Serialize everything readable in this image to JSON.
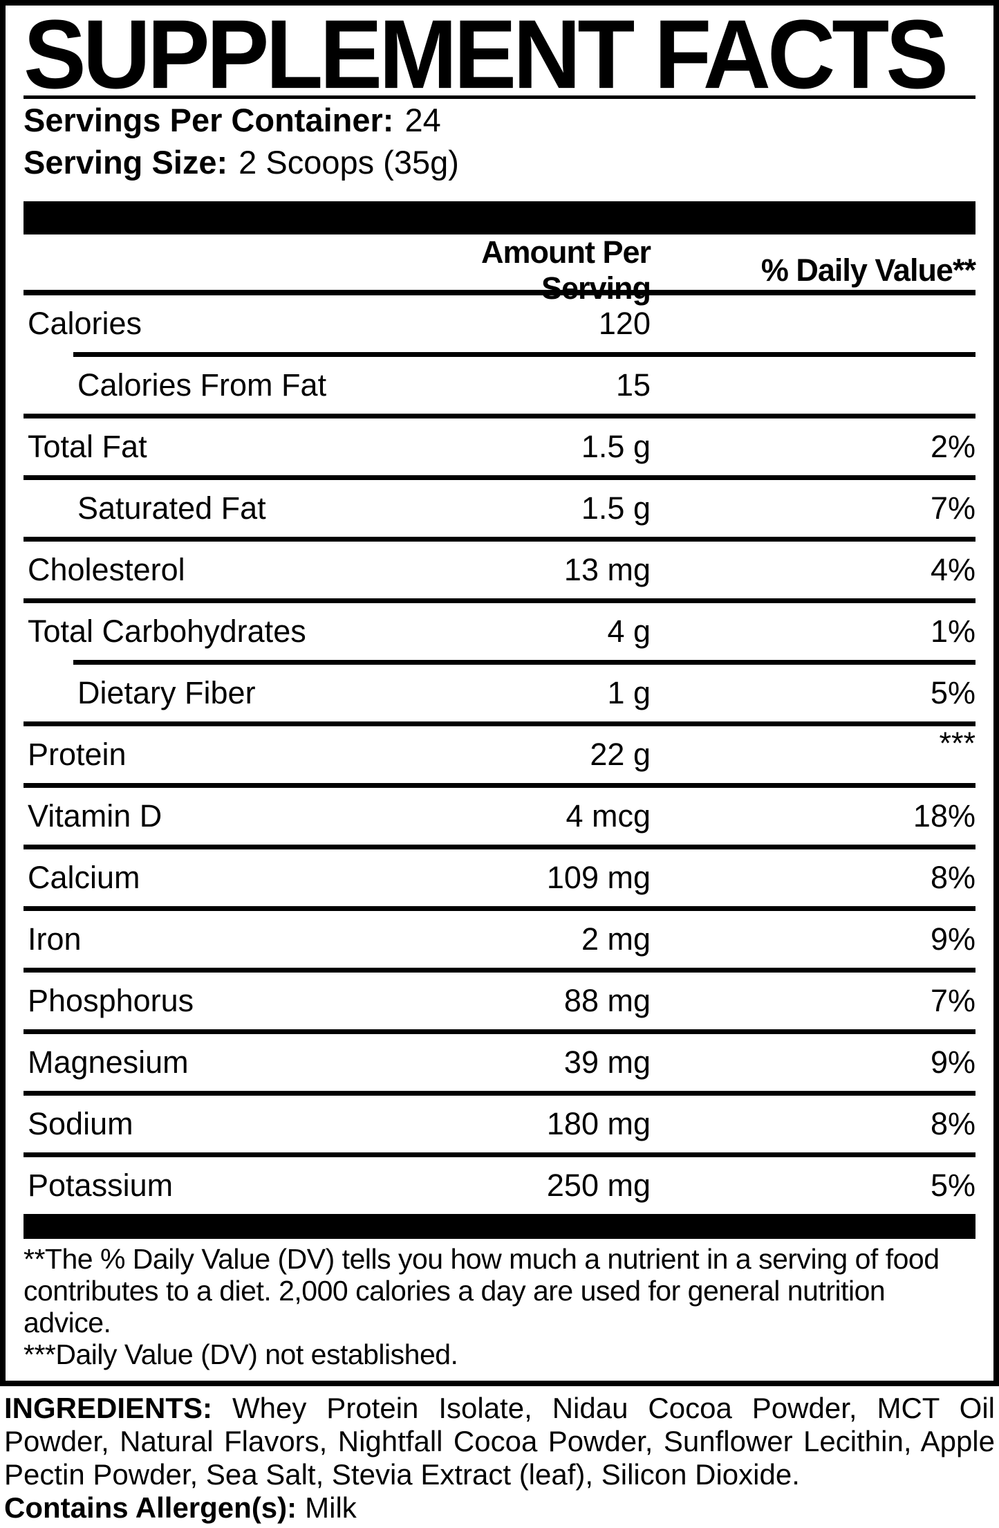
{
  "panel": {
    "title": "SUPPLEMENT FACTS",
    "servings": {
      "per_container_label": "Servings Per Container:",
      "per_container_value": "24",
      "size_label": "Serving Size:",
      "size_value": "2 Scoops (35g)"
    },
    "columns": {
      "amount": "Amount Per Serving",
      "dv": "% Daily Value**"
    },
    "rows": [
      {
        "label": "Calories",
        "amount": "120",
        "dv": ""
      },
      {
        "label": "Calories From Fat",
        "amount": "15",
        "dv": ""
      },
      {
        "label": "Total Fat",
        "amount": "1.5 g",
        "dv": "2%"
      },
      {
        "label": "Saturated Fat",
        "amount": "1.5 g",
        "dv": "7%"
      },
      {
        "label": "Cholesterol",
        "amount": "13 mg",
        "dv": "4%"
      },
      {
        "label": "Total Carbohydrates",
        "amount": "4 g",
        "dv": "1%"
      },
      {
        "label": "Dietary Fiber",
        "amount": "1 g",
        "dv": "5%"
      },
      {
        "label": "Protein",
        "amount": "22 g",
        "dv": "***"
      },
      {
        "label": "Vitamin D",
        "amount": "4 mcg",
        "dv": "18%"
      },
      {
        "label": "Calcium",
        "amount": "109 mg",
        "dv": "8%"
      },
      {
        "label": "Iron",
        "amount": "2 mg",
        "dv": "9%"
      },
      {
        "label": "Phosphorus",
        "amount": "88 mg",
        "dv": "7%"
      },
      {
        "label": "Magnesium",
        "amount": "39 mg",
        "dv": "9%"
      },
      {
        "label": "Sodium",
        "amount": "180 mg",
        "dv": "8%"
      },
      {
        "label": "Potassium",
        "amount": "250 mg",
        "dv": "5%"
      }
    ],
    "footnotes": [
      "**The % Daily Value (DV) tells you how much a nutrient in a serving of food contributes to a diet. 2,000 calories a day are used for general nutrition advice.",
      "***Daily Value (DV) not established."
    ]
  },
  "ingredients": {
    "label": "INGREDIENTS:",
    "text": "Whey Protein Isolate, Nidau Cocoa Powder, MCT Oil Powder, Natural Flavors, Nightfall Cocoa Powder, Sunflower Lecithin, Apple Pectin Powder, Sea Salt, Stevia Extract (leaf), Silicon Dioxide.",
    "allergen_label": "Contains Allergen(s):",
    "allergen_value": "Milk"
  },
  "colors": {
    "ink": "#000000",
    "paper": "#ffffff"
  }
}
